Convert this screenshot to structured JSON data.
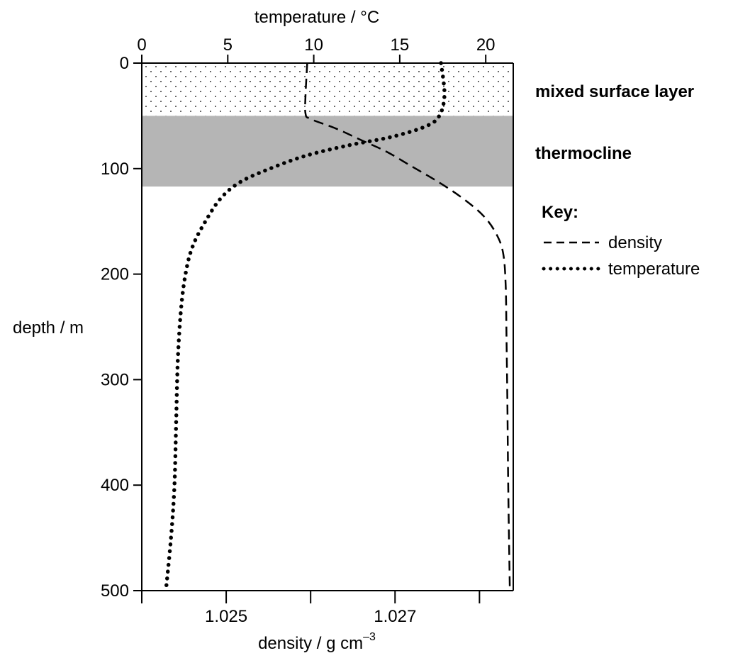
{
  "chart_data": {
    "type": "line",
    "y_axis": {
      "label": "depth / m",
      "range": [
        0,
        500
      ],
      "inverted": true,
      "ticks": [
        0,
        100,
        200,
        300,
        400,
        500
      ]
    },
    "top_axis": {
      "label": "temperature / °C",
      "range": [
        0,
        21.6
      ],
      "ticks": [
        0,
        5,
        10,
        15,
        20
      ]
    },
    "bottom_axis": {
      "label_prefix": "density / g cm",
      "label_superscript": "–3",
      "range": [
        1.0235,
        1.0279
      ],
      "ticks": [
        1.0235,
        1.0245,
        1.0255,
        1.0265,
        1.0275
      ],
      "tick_labels": [
        "",
        "1.025",
        "",
        "1.027",
        ""
      ]
    },
    "bands": [
      {
        "name": "mixed surface layer",
        "from": 0,
        "to": 50,
        "style": "dotted",
        "color": "#ffffff"
      },
      {
        "name": "thermocline",
        "from": 50,
        "to": 117,
        "style": "solid",
        "color": "#b5b5b5"
      }
    ],
    "series": [
      {
        "name": "density",
        "axis": "bottom",
        "style": "dashed",
        "points": [
          [
            1.02546,
            0
          ],
          [
            1.02544,
            30
          ],
          [
            1.02544,
            48
          ],
          [
            1.0255,
            53
          ],
          [
            1.0258,
            62
          ],
          [
            1.0261,
            73
          ],
          [
            1.0264,
            84
          ],
          [
            1.0267,
            98
          ],
          [
            1.027,
            112
          ],
          [
            1.0273,
            128
          ],
          [
            1.02755,
            145
          ],
          [
            1.0277,
            162
          ],
          [
            1.02778,
            180
          ],
          [
            1.02781,
            210
          ],
          [
            1.02782,
            260
          ],
          [
            1.02783,
            320
          ],
          [
            1.02784,
            400
          ],
          [
            1.02786,
            500
          ]
        ]
      },
      {
        "name": "temperature",
        "axis": "top",
        "style": "dotted",
        "points": [
          [
            17.4,
            0
          ],
          [
            17.6,
            30
          ],
          [
            17.3,
            50
          ],
          [
            16.5,
            60
          ],
          [
            14.5,
            70
          ],
          [
            12.0,
            78
          ],
          [
            9.5,
            88
          ],
          [
            7.3,
            101
          ],
          [
            5.7,
            113
          ],
          [
            4.6,
            128
          ],
          [
            3.7,
            150
          ],
          [
            3.0,
            172
          ],
          [
            2.6,
            195
          ],
          [
            2.3,
            230
          ],
          [
            2.1,
            280
          ],
          [
            2.0,
            340
          ],
          [
            1.9,
            400
          ],
          [
            1.7,
            450
          ],
          [
            1.4,
            500
          ]
        ]
      }
    ],
    "legend": {
      "title": "Key:",
      "position": "right",
      "entries": [
        {
          "label": "density",
          "style": "dashed"
        },
        {
          "label": "temperature",
          "style": "dotted"
        }
      ]
    }
  }
}
